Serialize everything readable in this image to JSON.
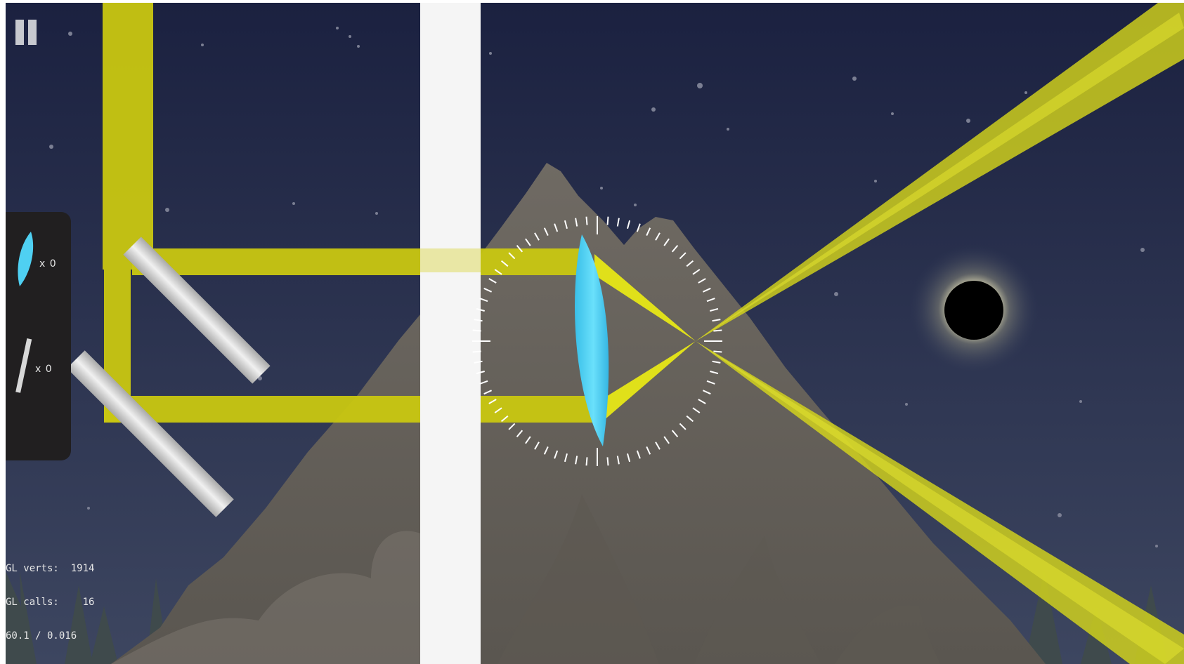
{
  "game": {
    "hud": {
      "pause": {
        "icon": "pause-icon"
      }
    },
    "inventory": {
      "items": [
        {
          "name": "lens",
          "icon": "lens-icon",
          "count_label": "x 0"
        },
        {
          "name": "mirror",
          "icon": "mirror-icon",
          "count_label": "x 0"
        }
      ]
    },
    "debug": {
      "lines": [
        "GL verts:  1914",
        "GL calls:    16",
        "60.1 / 0.016"
      ]
    },
    "colors": {
      "sky_top": "#1b2140",
      "sky_bottom": "#3b4560",
      "mountain": "#6b6660",
      "beam": "#d4d417",
      "lens": "#4fd0f2",
      "mirror": "#c9c9c9",
      "wall": "#f5f5f5",
      "panel": "#211f20",
      "eclipse_core": "#000000",
      "eclipse_glow": "#e8e2b0"
    }
  }
}
